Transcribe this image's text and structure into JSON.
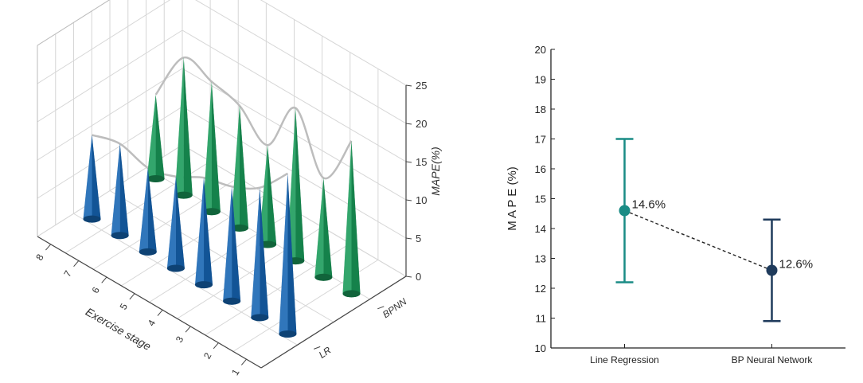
{
  "chart_data": [
    {
      "type": "3d-cone",
      "title": "",
      "xlabel": "Exercise stage",
      "zlabel": "MAPE(%)",
      "x_categories": [
        "1",
        "2",
        "3",
        "4",
        "5",
        "6",
        "7",
        "8"
      ],
      "y_categories": [
        "LR",
        "BPNN"
      ],
      "zlim": [
        0,
        25
      ],
      "z_ticks": [
        "0",
        "5",
        "10",
        "15",
        "20",
        "25"
      ],
      "series": [
        {
          "name": "LR",
          "color": "#1565b3",
          "values": [
            21,
            17,
            15,
            14,
            12,
            11,
            12,
            11
          ]
        },
        {
          "name": "BPNN",
          "color": "#1a9a5a",
          "values": [
            20,
            13,
            20,
            13,
            16,
            17,
            18,
            11
          ]
        }
      ],
      "grid": true
    },
    {
      "type": "errorbar",
      "title": "",
      "xlabel": "",
      "ylabel": "M A P E (%)",
      "ylim": [
        10,
        20
      ],
      "y_ticks": [
        "10",
        "11",
        "12",
        "13",
        "14",
        "15",
        "16",
        "17",
        "18",
        "19",
        "20"
      ],
      "categories": [
        "Line Regression",
        "BP Neural Network"
      ],
      "values": [
        14.6,
        12.6
      ],
      "lower": [
        12.2,
        10.9
      ],
      "upper": [
        17.0,
        14.3
      ],
      "point_labels": [
        "14.6%",
        "12.6%"
      ],
      "colors": [
        "#1a8c85",
        "#1f3b5c"
      ],
      "connector_color": "#222222"
    }
  ]
}
